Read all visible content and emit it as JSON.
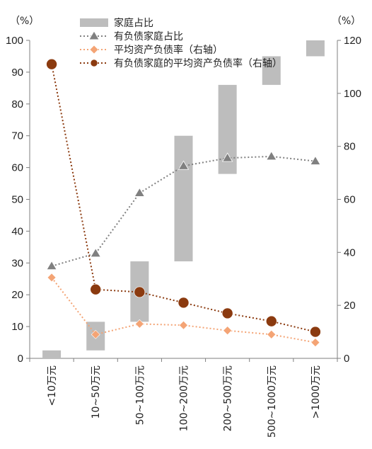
{
  "chart_data": {
    "type": "bar",
    "categories": [
      "<10万元",
      "10~50万元",
      "50~100万元",
      "100~200万元",
      "200~500万元",
      "500~1000万元",
      ">1000万元"
    ],
    "ylabel_left": "（%）",
    "ylabel_right": "（%）",
    "ylim_left": [
      0,
      100
    ],
    "ylim_right": [
      0,
      120
    ],
    "yticks_left": [
      "0",
      "10",
      "20",
      "30",
      "40",
      "50",
      "60",
      "70",
      "80",
      "90",
      "100"
    ],
    "yticks_right": [
      "0",
      "20",
      "40",
      "60",
      "80",
      "100",
      "120"
    ],
    "grid": false,
    "legend_placement": "top",
    "series": [
      {
        "name": "家庭占比",
        "kind": "floating-bar",
        "axis": "left",
        "color": "#bdbdbd",
        "ranges": [
          [
            0,
            2.5
          ],
          [
            2.5,
            11.5
          ],
          [
            11.5,
            30.5
          ],
          [
            30.5,
            70
          ],
          [
            58,
            86
          ],
          [
            86,
            95
          ],
          [
            95,
            100
          ]
        ]
      },
      {
        "name": "有负债家庭占比",
        "kind": "line",
        "axis": "left",
        "color": "#808080",
        "marker": "triangle",
        "values": [
          29,
          33,
          52,
          60.5,
          63,
          63.5,
          62
        ]
      },
      {
        "name": "平均资产负债率（右轴）",
        "kind": "line",
        "axis": "right",
        "color": "#f4a475",
        "marker": "diamond",
        "values": [
          30.5,
          9,
          13,
          12.5,
          10.5,
          9,
          6
        ]
      },
      {
        "name": "有负债家庭的平均资产负债率（右轴）",
        "kind": "line",
        "axis": "right",
        "color": "#8b3a0f",
        "marker": "circle",
        "values": [
          111,
          26,
          25,
          21,
          17,
          14,
          10
        ]
      }
    ]
  }
}
